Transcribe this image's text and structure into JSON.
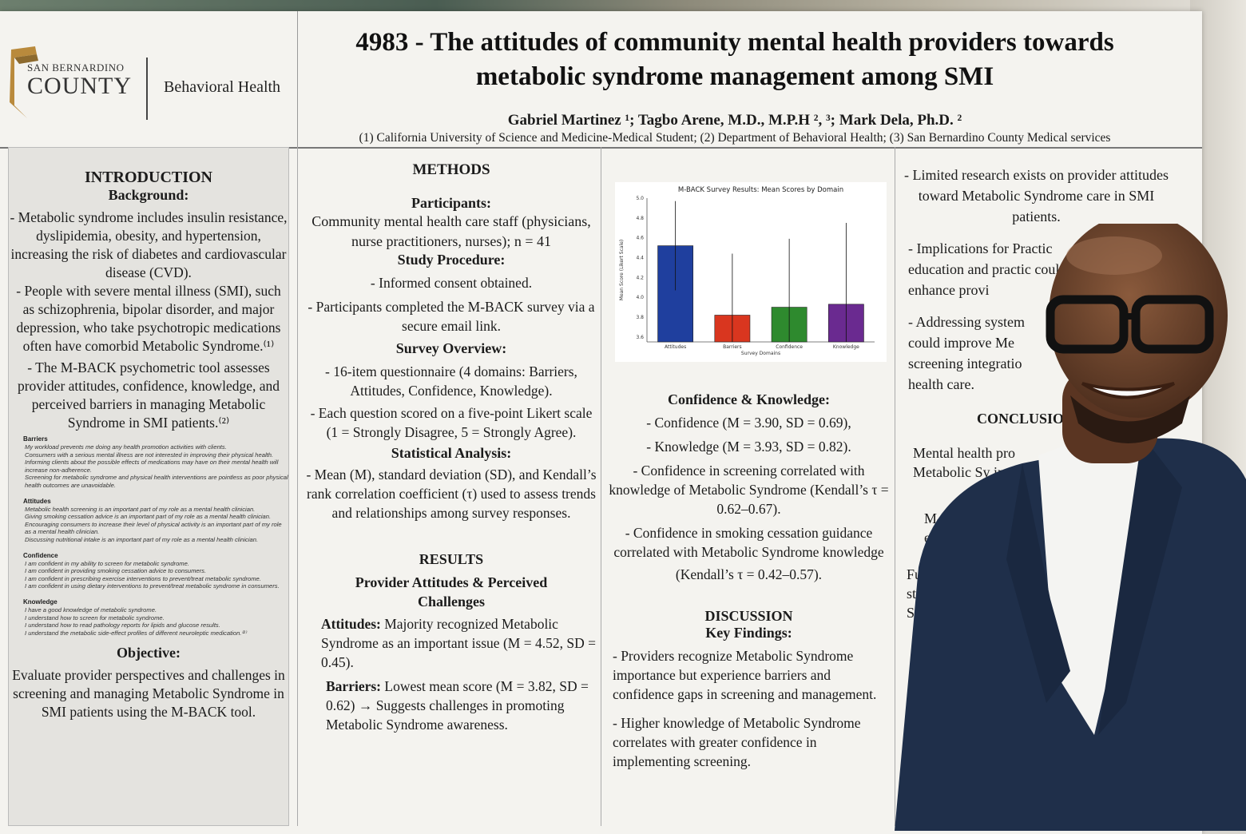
{
  "logo": {
    "org_line1": "SAN BERNARDINO",
    "org_line2": "COUNTY",
    "dept": "Behavioral Health"
  },
  "header": {
    "title_line1": "4983 - The attitudes of community mental health providers towards",
    "title_line2": "metabolic syndrome management among SMI",
    "authors": "Gabriel Martinez ¹; Tagbo Arene, M.D., M.P.H ², ³; Mark Dela, Ph.D. ²",
    "affiliations": "(1) California University of Science and Medicine-Medical Student; (2) Department of Behavioral Health; (3) San Bernardino County Medical services"
  },
  "intro": {
    "heading": "INTRODUCTION",
    "background_heading": "Background:",
    "p1": "- Metabolic syndrome includes insulin resistance, dyslipidemia, obesity, and hypertension, increasing the risk of diabetes and cardiovascular disease (CVD).",
    "p2": "- People with severe mental illness (SMI), such as schizophrenia, bipolar disorder, and major depression, who take psychotropic medications often have comorbid Metabolic Syndrome.⁽¹⁾",
    "p3": "- The M-BACK psychometric tool assesses provider attitudes, confidence, knowledge, and perceived barriers in managing Metabolic Syndrome in SMI patients.⁽²⁾",
    "barriers_heading": "Barriers",
    "barriers": [
      "My workload prevents me doing any health promotion activities with clients.",
      "Consumers with a serious mental illness are not interested in improving their physical health.",
      "Informing clients about the possible effects of medications may have on their mental health will increase non-adherence.",
      "Screening for metabolic syndrome and physical health interventions are pointless as poor physical health outcomes are unavoidable."
    ],
    "attitudes_heading": "Attitudes",
    "attitudes": [
      "Metabolic health screening is an important part of my role as a mental health clinician.",
      "Giving smoking cessation advice is an important part of my role as a mental health clinician.",
      "Encouraging consumers to increase their level of physical activity is an important part of my role as a mental health clinician.",
      "Discussing nutritional intake is an important part of my role as a mental health clinician."
    ],
    "confidence_heading": "Confidence",
    "confidence": [
      "I am confident in my ability to screen for metabolic syndrome.",
      "I am confident in providing smoking cessation advice to consumers.",
      "I am confident in prescribing exercise interventions to prevent/treat metabolic syndrome.",
      "I am confident in using dietary interventions to prevent/treat metabolic syndrome in consumers."
    ],
    "knowledge_heading": "Knowledge",
    "knowledge": [
      "I have a good knowledge of metabolic syndrome.",
      "I understand how to screen for metabolic syndrome.",
      "I understand how to read pathology reports for lipids and glucose results.",
      "I understand the metabolic side-effect profiles of different neuroleptic medication.⁽²⁾"
    ],
    "objective_heading": "Objective:",
    "objective": "Evaluate provider perspectives and challenges in screening and managing Metabolic Syndrome in SMI patients using the M-BACK tool."
  },
  "methods": {
    "heading": "METHODS",
    "participants_heading": "Participants:",
    "participants": "Community mental health care staff (physicians, nurse practitioners, nurses); n = 41",
    "procedure_heading": "Study Procedure:",
    "procedure": [
      "- Informed consent obtained.",
      "- Participants completed the M-BACK survey via a secure email link."
    ],
    "survey_heading": "Survey Overview:",
    "survey": [
      "-  16-item questionnaire (4 domains: Barriers, Attitudes, Confidence, Knowledge).",
      "-  Each question scored on a five-point Likert scale (1 = Strongly Disagree, 5 = Strongly Agree)."
    ],
    "stats_heading": "Statistical Analysis:",
    "stats": "-  Mean (M), standard deviation (SD), and Kendall’s rank correlation coefficient (τ) used to assess trends and relationships among survey responses."
  },
  "results": {
    "heading": "RESULTS",
    "sub_heading_line1": "Provider Attitudes & Perceived",
    "sub_heading_line2": "Challenges",
    "attitudes_label": "Attitudes:",
    "attitudes_text": " Majority recognized Metabolic Syndrome as an important issue (M = 4.52, SD = 0.45).",
    "barriers_label": "Barriers:",
    "barriers_text": " Lowest mean score (M = 3.82, SD = 0.62) → Suggests challenges in promoting Metabolic Syndrome awareness."
  },
  "chart_data": {
    "type": "bar",
    "title": "M-BACK Survey Results: Mean Scores by Domain",
    "xlabel": "Survey Domains",
    "ylabel": "Mean Score (Likert Scale)",
    "categories": [
      "Attitudes",
      "Barriers",
      "Confidence",
      "Knowledge"
    ],
    "values": [
      4.52,
      3.82,
      3.9,
      3.93
    ],
    "errors": [
      0.45,
      0.62,
      0.69,
      0.82
    ],
    "colors": [
      "#1f3f9e",
      "#d9361f",
      "#2e8a2e",
      "#6a2a90"
    ],
    "ylim": [
      3.55,
      5.0
    ],
    "yticks": [
      "3.6",
      "3.8",
      "4.0",
      "4.2",
      "4.4",
      "4.6",
      "4.8",
      "5.0"
    ]
  },
  "conf_know": {
    "heading": "Confidence & Knowledge:",
    "items": [
      "-   Confidence (M = 3.90, SD = 0.69),",
      "-   Knowledge (M = 3.93, SD = 0.82).",
      "-   Confidence in screening correlated with knowledge of Metabolic Syndrome (Kendall’s τ = 0.62–0.67).",
      "-   Confidence in smoking cessation guidance correlated with Metabolic Syndrome knowledge"
    ],
    "kendall2": "(Kendall’s τ = 0.42–0.57)."
  },
  "discussion": {
    "heading": "DISCUSSION",
    "key_heading": "Key Findings:",
    "items": [
      "-  Providers recognize Metabolic Syndrome importance but experience barriers and confidence gaps in screening and management.",
      "-  Higher knowledge of Metabolic Syndrome correlates with greater confidence in implementing screening."
    ]
  },
  "col4": {
    "items": [
      "-  Limited research exists on provider attitudes toward Metabolic Syndrome care in SMI patients.",
      "-  Implications for Practic education and practic could enhance provi",
      "-  Addressing system could improve Me screening integratio health care."
    ],
    "conclusion_heading": "CONCLUSIO",
    "conclusion": "Mental health pro Metabolic Sy interven",
    "frag1": "M-B eva",
    "frag2": "Furth stra S"
  }
}
